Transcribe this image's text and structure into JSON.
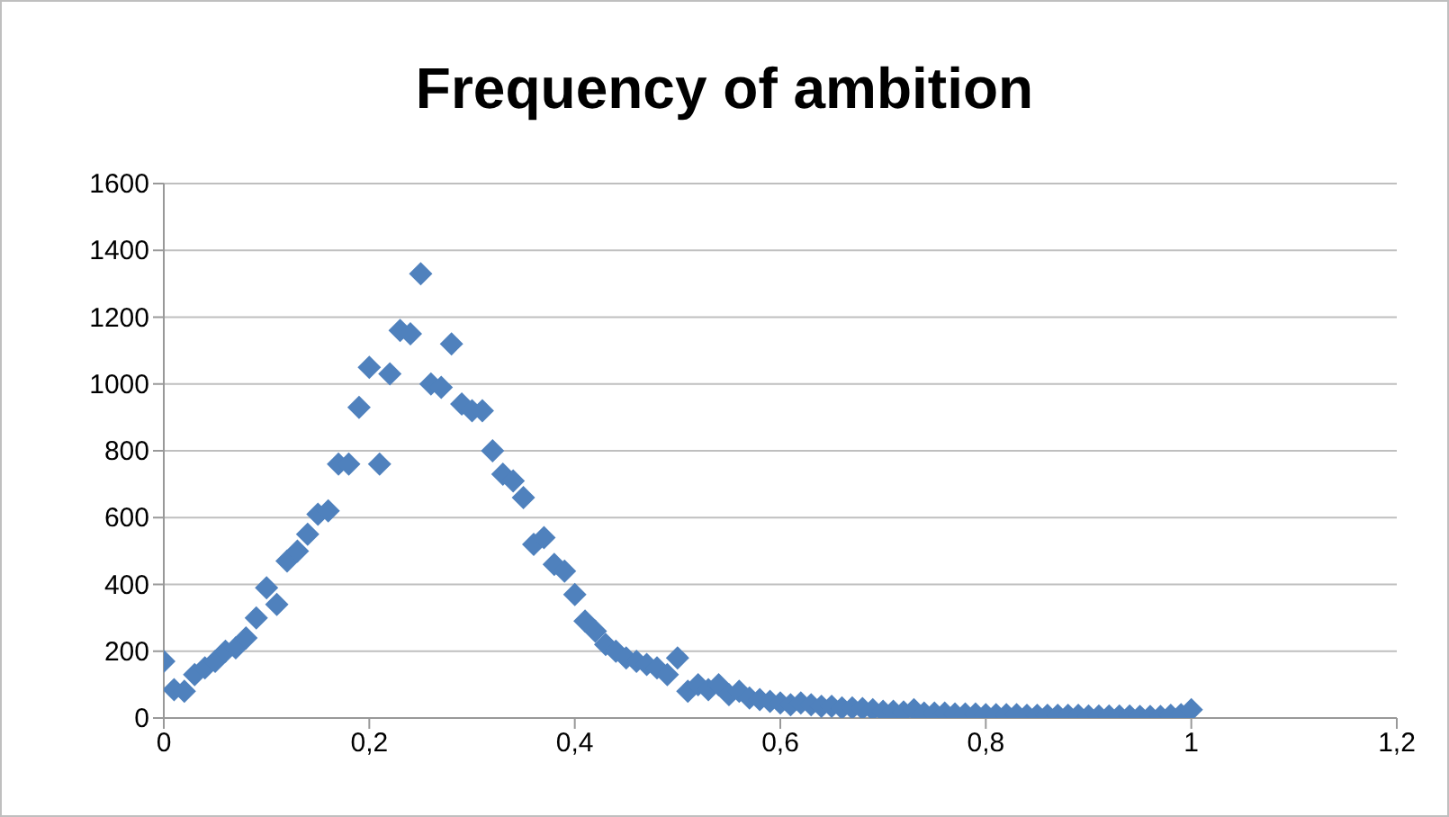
{
  "chart_data": {
    "type": "scatter",
    "title": "Frequency of ambition",
    "x": [
      0,
      0.01,
      0.02,
      0.03,
      0.04,
      0.05,
      0.06,
      0.07,
      0.08,
      0.09,
      0.1,
      0.11,
      0.12,
      0.13,
      0.14,
      0.15,
      0.16,
      0.17,
      0.18,
      0.19,
      0.2,
      0.21,
      0.22,
      0.23,
      0.24,
      0.25,
      0.26,
      0.27,
      0.28,
      0.29,
      0.3,
      0.31,
      0.32,
      0.33,
      0.34,
      0.35,
      0.36,
      0.37,
      0.38,
      0.39,
      0.4,
      0.41,
      0.42,
      0.43,
      0.44,
      0.45,
      0.46,
      0.47,
      0.48,
      0.49,
      0.5,
      0.51,
      0.52,
      0.53,
      0.54,
      0.55,
      0.56,
      0.57,
      0.58,
      0.59,
      0.6,
      0.61,
      0.62,
      0.63,
      0.64,
      0.65,
      0.66,
      0.67,
      0.68,
      0.69,
      0.7,
      0.71,
      0.72,
      0.73,
      0.74,
      0.75,
      0.76,
      0.77,
      0.78,
      0.79,
      0.8,
      0.81,
      0.82,
      0.83,
      0.84,
      0.85,
      0.86,
      0.87,
      0.88,
      0.89,
      0.9,
      0.91,
      0.92,
      0.93,
      0.94,
      0.95,
      0.96,
      0.97,
      0.98,
      0.99,
      1
    ],
    "values": [
      170,
      85,
      80,
      130,
      150,
      170,
      200,
      210,
      240,
      300,
      390,
      340,
      470,
      500,
      550,
      610,
      620,
      760,
      760,
      930,
      1050,
      760,
      1030,
      1160,
      1150,
      1330,
      1000,
      990,
      1120,
      940,
      920,
      920,
      800,
      730,
      710,
      660,
      520,
      540,
      460,
      440,
      370,
      290,
      260,
      220,
      200,
      180,
      170,
      160,
      150,
      130,
      180,
      80,
      100,
      85,
      100,
      70,
      80,
      60,
      55,
      50,
      45,
      40,
      45,
      40,
      35,
      35,
      30,
      30,
      28,
      25,
      20,
      20,
      18,
      25,
      15,
      15,
      15,
      12,
      12,
      12,
      10,
      10,
      10,
      10,
      8,
      8,
      8,
      8,
      8,
      8,
      6,
      6,
      6,
      6,
      6,
      5,
      5,
      5,
      8,
      10,
      25
    ],
    "color": "#4f81bd",
    "marker": "diamond",
    "xlim": [
      0,
      1.2
    ],
    "xticks": [
      {
        "value": 0,
        "label": "0"
      },
      {
        "value": 0.2,
        "label": "0,2"
      },
      {
        "value": 0.4,
        "label": "0,4"
      },
      {
        "value": 0.6,
        "label": "0,6"
      },
      {
        "value": 0.8,
        "label": "0,8"
      },
      {
        "value": 1,
        "label": "1"
      },
      {
        "value": 1.2,
        "label": "1,2"
      }
    ],
    "ylim": [
      0,
      1600
    ],
    "yticks": [
      0,
      200,
      400,
      600,
      800,
      1000,
      1200,
      1400,
      1600
    ],
    "grid": "y"
  }
}
